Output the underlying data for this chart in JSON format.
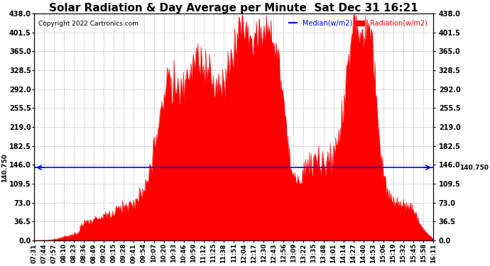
{
  "title": "Solar Radiation & Day Average per Minute  Sat Dec 31 16:21",
  "copyright": "Copyright 2022 Cartronics.com",
  "median_value": 140.75,
  "median_label": "140.750",
  "y_ticks": [
    0.0,
    36.5,
    73.0,
    109.5,
    146.0,
    182.5,
    219.0,
    255.5,
    292.0,
    328.5,
    365.0,
    401.5,
    438.0
  ],
  "ylim": [
    0,
    438.0
  ],
  "legend_median": "Median(w/m2)",
  "legend_radiation": "Radiation(w/m2)",
  "median_color": "blue",
  "radiation_color": "red",
  "background_color": "white",
  "grid_color": "#aaaaaa",
  "title_fontsize": 11,
  "x_labels": [
    "07:31",
    "07:44",
    "07:57",
    "08:10",
    "08:23",
    "08:36",
    "08:49",
    "09:02",
    "09:15",
    "09:28",
    "09:41",
    "09:54",
    "10:07",
    "10:20",
    "10:33",
    "10:46",
    "10:59",
    "11:12",
    "11:25",
    "11:38",
    "11:51",
    "12:04",
    "12:17",
    "12:30",
    "12:43",
    "12:56",
    "13:09",
    "13:22",
    "13:35",
    "13:48",
    "14:01",
    "14:14",
    "14:27",
    "14:40",
    "14:53",
    "15:06",
    "15:19",
    "15:32",
    "15:45",
    "15:58",
    "16:11"
  ],
  "num_points": 520
}
